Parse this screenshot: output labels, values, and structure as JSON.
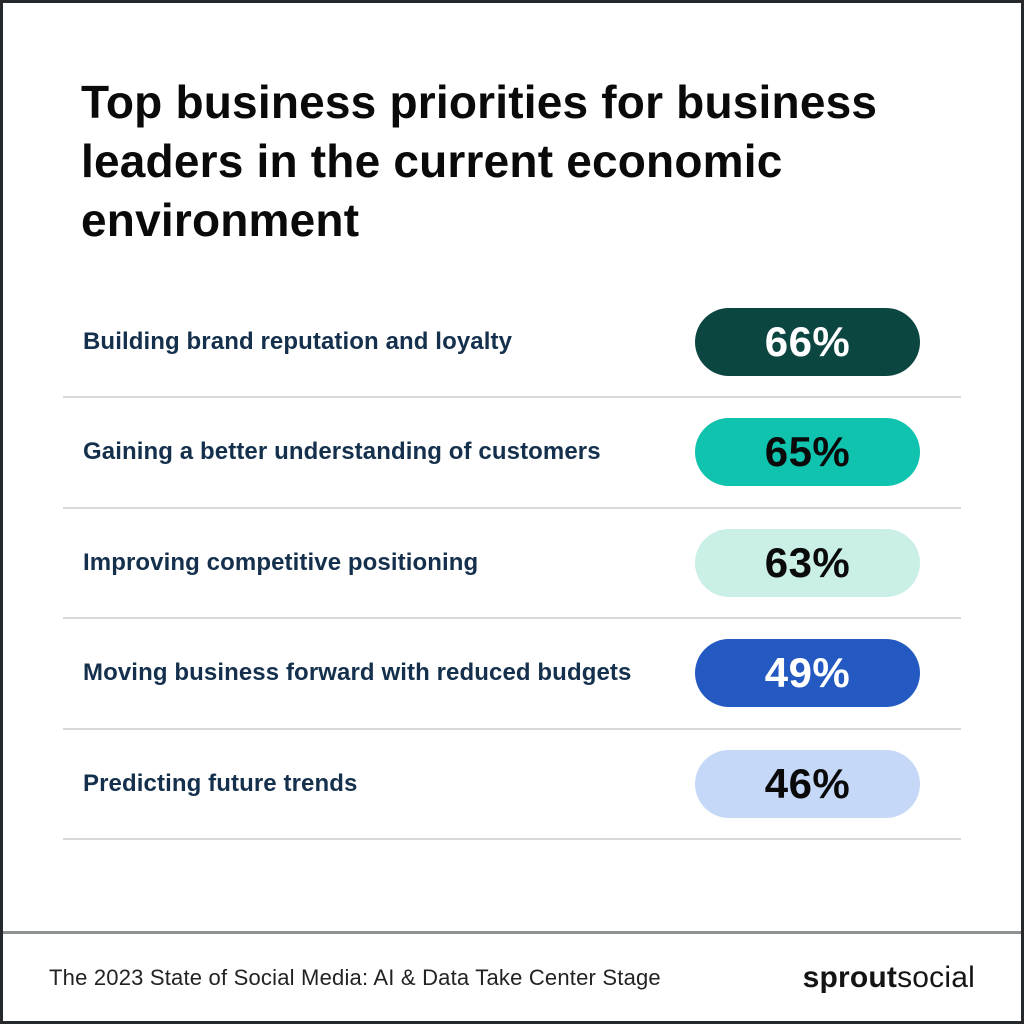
{
  "title": "Top business priorities for business leaders in the current economic environment",
  "rows": [
    {
      "label": "Building brand reputation and loyalty",
      "value": "66%",
      "pill_bg": "#0C4641",
      "pill_text": "#FFFFFF"
    },
    {
      "label": "Gaining a better understanding of customers",
      "value": "65%",
      "pill_bg": "#0FC3AE",
      "pill_text": "#0A0A0A"
    },
    {
      "label": "Improving competitive positioning",
      "value": "63%",
      "pill_bg": "#C9EFE6",
      "pill_text": "#0A0A0A"
    },
    {
      "label": "Moving business forward with reduced budgets",
      "value": "49%",
      "pill_bg": "#2459C2",
      "pill_text": "#FFFFFF"
    },
    {
      "label": "Predicting future trends",
      "value": "46%",
      "pill_bg": "#C6D8F7",
      "pill_text": "#0A0A0A"
    }
  ],
  "footer": {
    "source": "The 2023 State of Social Media: AI & Data Take Center Stage",
    "brand_bold": "sprout",
    "brand_light": "social"
  },
  "colors": {
    "title_text": "#0A0A0A",
    "label_text": "#14304D",
    "row_separator": "#D8D8D8",
    "footer_divider": "#8E9293",
    "outer_border": "#26292B",
    "background": "#FFFFFF"
  },
  "chart_data": {
    "type": "bar",
    "title": "Top business priorities for business leaders in the current economic environment",
    "categories": [
      "Building brand reputation and loyalty",
      "Gaining a better understanding of customers",
      "Improving competitive positioning",
      "Moving business forward with reduced budgets",
      "Predicting future trends"
    ],
    "values": [
      66,
      65,
      63,
      49,
      46
    ],
    "unit": "%",
    "value_labels": [
      "66%",
      "65%",
      "63%",
      "49%",
      "46%"
    ],
    "bar_colors": [
      "#0C4641",
      "#0FC3AE",
      "#C9EFE6",
      "#2459C2",
      "#C6D8F7"
    ],
    "xlabel": "",
    "ylabel": "",
    "legend": false,
    "source": "The 2023 State of Social Media: AI & Data Take Center Stage"
  }
}
